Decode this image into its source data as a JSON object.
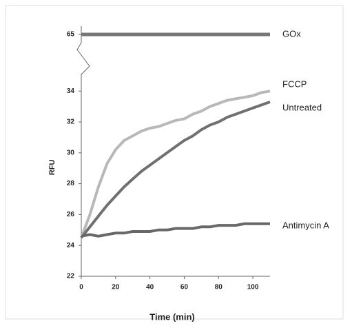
{
  "chart_data": {
    "type": "line",
    "x_label": "Time (min)",
    "y_label": "RFU",
    "x": [
      0,
      5,
      10,
      15,
      20,
      25,
      30,
      35,
      40,
      45,
      50,
      55,
      60,
      65,
      70,
      75,
      80,
      85,
      90,
      95,
      100,
      105,
      110
    ],
    "xlim": [
      0,
      110
    ],
    "xticks": [
      0,
      20,
      40,
      60,
      80,
      100
    ],
    "ylim": [
      22,
      34.5
    ],
    "yticks": [
      22,
      24,
      26,
      28,
      30,
      32,
      34
    ],
    "y2lim": [
      64,
      66
    ],
    "y2ticks": [
      65
    ],
    "series": [
      {
        "name": "GOx",
        "color": "#777777",
        "axis": "y2",
        "values": [
          65,
          65,
          65,
          65,
          65,
          65,
          65,
          65,
          65,
          65,
          65,
          65,
          65,
          65,
          65,
          65,
          65,
          65,
          65,
          65,
          65,
          65,
          65
        ]
      },
      {
        "name": "FCCP",
        "color": "#b8b8b8",
        "values": [
          24.5,
          26,
          27.8,
          29.3,
          30.2,
          30.8,
          31.1,
          31.4,
          31.6,
          31.7,
          31.9,
          32.1,
          32.2,
          32.5,
          32.7,
          33.0,
          33.2,
          33.4,
          33.5,
          33.6,
          33.7,
          33.9,
          34.0
        ]
      },
      {
        "name": "Untreated",
        "color": "#707070",
        "values": [
          24.5,
          25.2,
          25.9,
          26.6,
          27.2,
          27.8,
          28.3,
          28.8,
          29.2,
          29.6,
          30.0,
          30.4,
          30.8,
          31.1,
          31.5,
          31.8,
          32.0,
          32.3,
          32.5,
          32.7,
          32.9,
          33.1,
          33.3
        ]
      },
      {
        "name": "Antimycin A",
        "color": "#686868",
        "values": [
          24.6,
          24.7,
          24.6,
          24.7,
          24.8,
          24.8,
          24.9,
          24.9,
          24.9,
          25.0,
          25.0,
          25.1,
          25.1,
          25.1,
          25.2,
          25.2,
          25.3,
          25.3,
          25.3,
          25.4,
          25.4,
          25.4,
          25.4
        ]
      }
    ]
  }
}
